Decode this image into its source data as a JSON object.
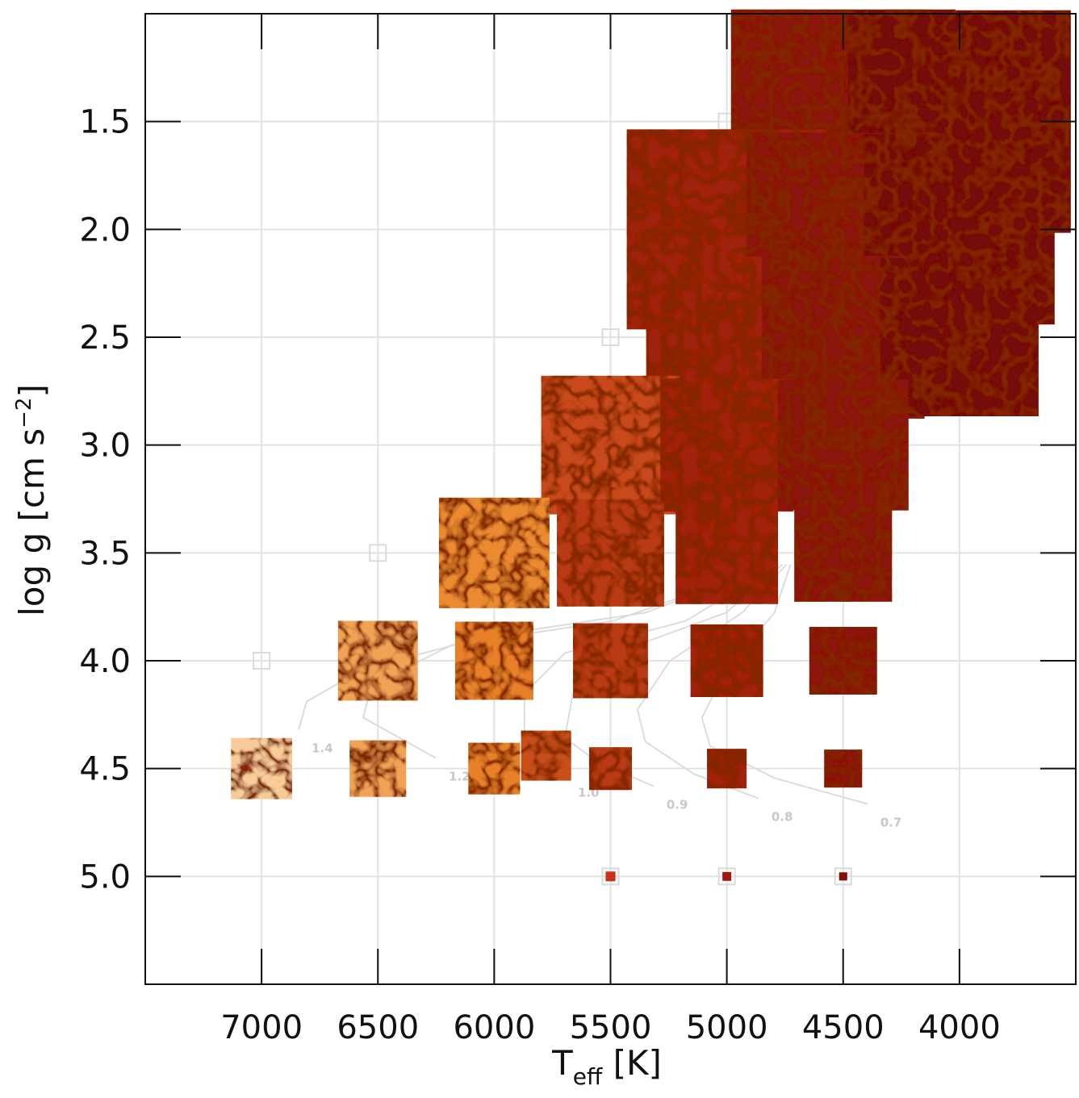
{
  "chart_data": {
    "type": "scatter",
    "xlabel_parts": [
      "T",
      "eff",
      " [K]"
    ],
    "ylabel_parts": [
      "log g [cm s",
      "−2",
      "]"
    ],
    "xlim": [
      7500,
      3500
    ],
    "ylim": [
      5.5,
      1.0
    ],
    "xticks": [
      7000,
      6500,
      6000,
      5500,
      5000,
      4500,
      4000
    ],
    "yticks": [
      1.5,
      {
        "value": 2,
        "label": "2.0"
      },
      2.5,
      {
        "value": 3,
        "label": "3.0"
      },
      3.5,
      {
        "value": 4,
        "label": "4.0"
      },
      4.5,
      {
        "value": 5,
        "label": "5.0"
      }
    ],
    "grid": true,
    "x": [
      4500,
      4000,
      5000,
      4500,
      4000,
      5000,
      4500,
      4000,
      5500,
      5000,
      4500,
      6000,
      5500,
      5000,
      4500,
      6500,
      6000,
      5500,
      5000,
      4500,
      7000,
      6500,
      6000,
      5777,
      5500,
      5000,
      4500,
      5500,
      5000,
      4500
    ],
    "y": [
      1.5,
      1.5,
      2.0,
      2.0,
      2.0,
      2.5,
      2.5,
      2.5,
      3.0,
      3.0,
      3.0,
      3.5,
      3.5,
      3.5,
      3.5,
      4.0,
      4.0,
      4.0,
      4.0,
      4.0,
      4.5,
      4.5,
      4.5,
      4.44,
      4.5,
      4.5,
      4.5,
      5.0,
      5.0,
      5.0
    ],
    "size": [
      964,
      957,
      860,
      832,
      818,
      693,
      700,
      680,
      596,
      572,
      562,
      475,
      461,
      440,
      420,
      343,
      336,
      322,
      312,
      291,
      263,
      243,
      222,
      215,
      184,
      170,
      163,
      42,
      38,
      35
    ],
    "colors": [
      "#8a180a",
      "#761008",
      "#9e220e",
      "#8a180a",
      "#761008",
      "#9e220e",
      "#8a180a",
      "#761008",
      "#c84a1a",
      "#a0240e",
      "#8a180a",
      "#ec8a32",
      "#b83a18",
      "#a0240e",
      "#8a180a",
      "#f2a254",
      "#e8802c",
      "#b83a18",
      "#9e220e",
      "#8a180a",
      "#f8cc98",
      "#f2a254",
      "#e8802c",
      "#c8501c",
      "#b83a18",
      "#9e220e",
      "#8a180a",
      "#c8321a",
      "#a0180c",
      "#861008"
    ],
    "empty_models": {
      "x": [
        5000,
        5500,
        6500,
        7000,
        5500,
        5000,
        4500
      ],
      "y": [
        1.5,
        2.5,
        3.5,
        4.0,
        5.0,
        5.0,
        5.0
      ]
    },
    "tracks": [
      {
        "name": "1.4",
        "x": [
          6841,
          6806,
          6563,
          6043,
          5350,
          4795
        ],
        "y": [
          4.32,
          4.189,
          4.039,
          3.89,
          3.777,
          3.553
        ]
      },
      {
        "name": "1.2",
        "x": [
          6251,
          6563,
          6528,
          6182,
          5488,
          4795
        ],
        "y": [
          4.451,
          4.264,
          4.114,
          3.927,
          3.815,
          3.553
        ]
      },
      {
        "name": "1.0",
        "x": [
          5696,
          5870,
          5870,
          5696,
          5176,
          4778
        ],
        "y": [
          4.525,
          4.338,
          4.151,
          3.964,
          3.815,
          3.553
        ]
      },
      {
        "name": "0.9",
        "x": [
          5315,
          5558,
          5696,
          5662,
          5384,
          5003,
          4760
        ],
        "y": [
          4.582,
          4.469,
          4.357,
          4.151,
          3.927,
          3.777,
          3.553
        ]
      },
      {
        "name": "0.8",
        "x": [
          4864,
          5142,
          5350,
          5384,
          5246,
          4934,
          4743
        ],
        "y": [
          4.638,
          4.525,
          4.376,
          4.226,
          4.002,
          3.777,
          3.553
        ]
      },
      {
        "name": "0.7",
        "x": [
          4396,
          4795,
          5072,
          5107,
          5003,
          4795,
          4726
        ],
        "y": [
          4.664,
          4.544,
          4.395,
          4.264,
          4.039,
          3.777,
          3.553
        ]
      }
    ]
  }
}
